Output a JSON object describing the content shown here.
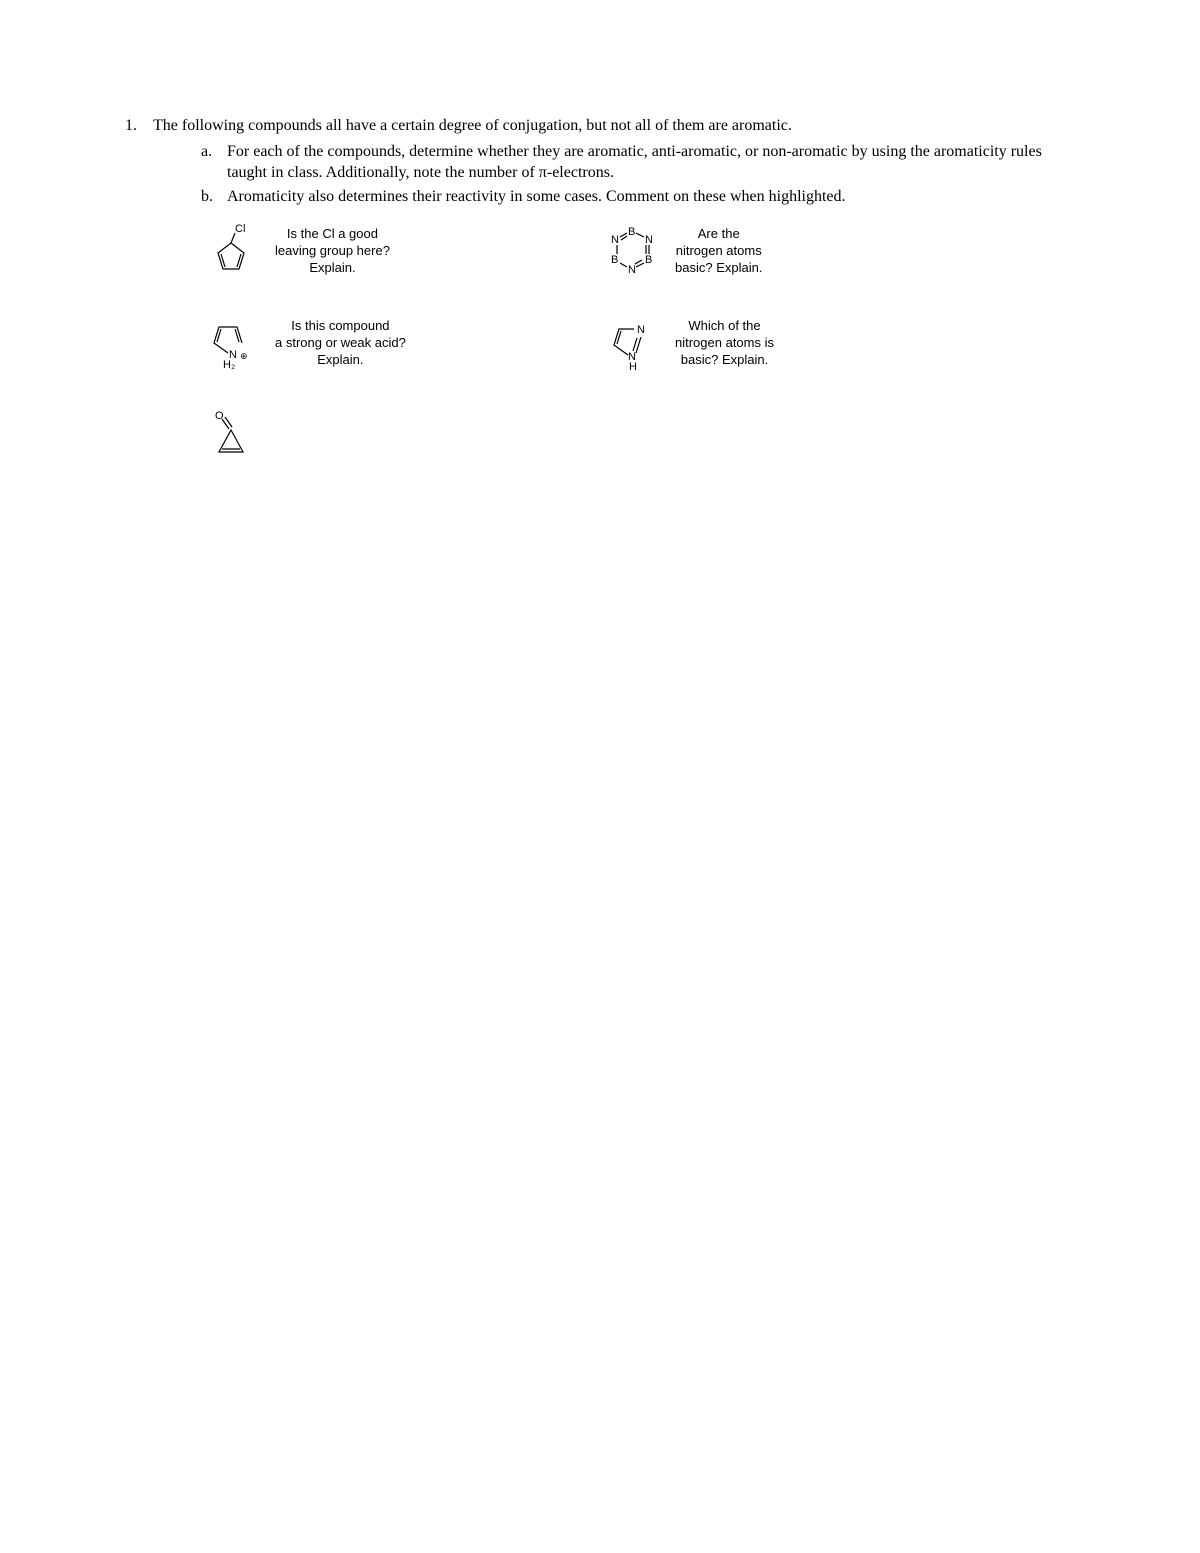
{
  "question": {
    "number": "1.",
    "intro": "The following compounds all have a certain degree of conjugation, but not all of them are aromatic.",
    "subs": [
      {
        "letter": "a.",
        "text": "For each of the compounds, determine whether they are aromatic, anti-aromatic, or non-aromatic by using the aromaticity rules taught in class. Additionally, note the number of π-electrons."
      },
      {
        "letter": "b.",
        "text": "Aromaticity also determines their reactivity in some cases. Comment on these when highlighted."
      }
    ]
  },
  "compounds": {
    "row1": {
      "left_caption": "Is the Cl a good\nleaving group here?\nExplain.",
      "right_caption": "Are the\nnitrogen atoms\nbasic? Explain.",
      "left_labels": {
        "cl": "Cl"
      },
      "right_labels": {
        "n": "N",
        "b": "B"
      }
    },
    "row2": {
      "left_caption": "Is this compound\na strong or weak acid?\nExplain.",
      "right_caption": "Which of the\nnitrogen atoms is\nbasic? Explain.",
      "left_labels": {
        "n": "N",
        "h2": "H₂",
        "plus": "⊕"
      },
      "right_labels": {
        "n1": "N",
        "n2": "N",
        "h": "H"
      }
    },
    "row3": {
      "left_labels": {
        "o": "O"
      }
    }
  },
  "style": {
    "stroke": "#000000",
    "stroke_width": 1.2,
    "font_family_body": "Times New Roman",
    "font_family_chem": "Arial",
    "font_size_body": 16,
    "font_size_chem": 13
  }
}
